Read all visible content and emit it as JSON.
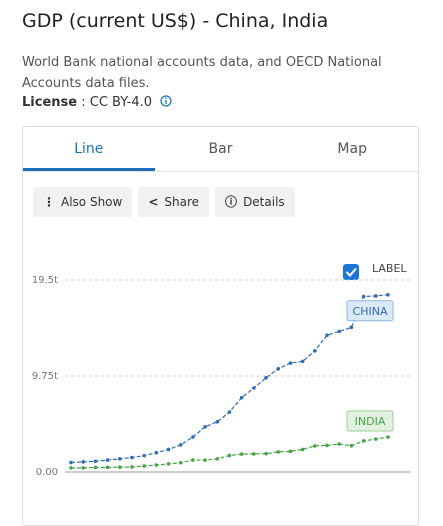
{
  "header": {
    "title": "GDP (current US$) - China, India",
    "description": "World Bank national accounts data, and OECD National Accounts data files.",
    "license_label": "License",
    "license_separator": ":",
    "license_value": "CC BY-4.0"
  },
  "tabs": [
    "Line",
    "Bar",
    "Map"
  ],
  "buttons": [
    "Also Show",
    "Share",
    "Details"
  ],
  "label_toggle": "LABEL",
  "chart_data": {
    "type": "line",
    "categories": [
      null,
      null,
      null,
      null,
      null,
      null,
      null,
      null,
      null,
      null,
      null,
      null,
      null,
      null,
      null,
      null,
      null,
      null,
      null,
      null,
      null,
      null,
      null,
      null,
      null,
      null,
      null
    ],
    "series": [
      {
        "name": "CHINA",
        "color": "#2f6db5",
        "values": [
          0.96,
          1.03,
          1.09,
          1.21,
          1.34,
          1.47,
          1.66,
          1.96,
          2.29,
          2.75,
          3.55,
          4.59,
          5.1,
          6.09,
          7.55,
          8.53,
          9.57,
          10.48,
          11.06,
          11.23,
          12.31,
          13.89,
          14.28,
          14.69,
          17.82,
          17.88,
          18.0
        ]
      },
      {
        "name": "INDIA",
        "color": "#46a447",
        "values": [
          0.42,
          0.42,
          0.46,
          0.47,
          0.49,
          0.51,
          0.61,
          0.71,
          0.82,
          0.94,
          1.22,
          1.2,
          1.34,
          1.68,
          1.82,
          1.83,
          1.86,
          2.04,
          2.1,
          2.29,
          2.65,
          2.7,
          2.84,
          2.67,
          3.15,
          3.35,
          3.55
        ]
      }
    ],
    "ylim": [
      0,
      19.5
    ],
    "yticks": [
      {
        "value": 0,
        "label": "0.00"
      },
      {
        "value": 9.75,
        "label": "9.75t"
      },
      {
        "value": 19.5,
        "label": "19.5t"
      }
    ],
    "grid": true
  }
}
